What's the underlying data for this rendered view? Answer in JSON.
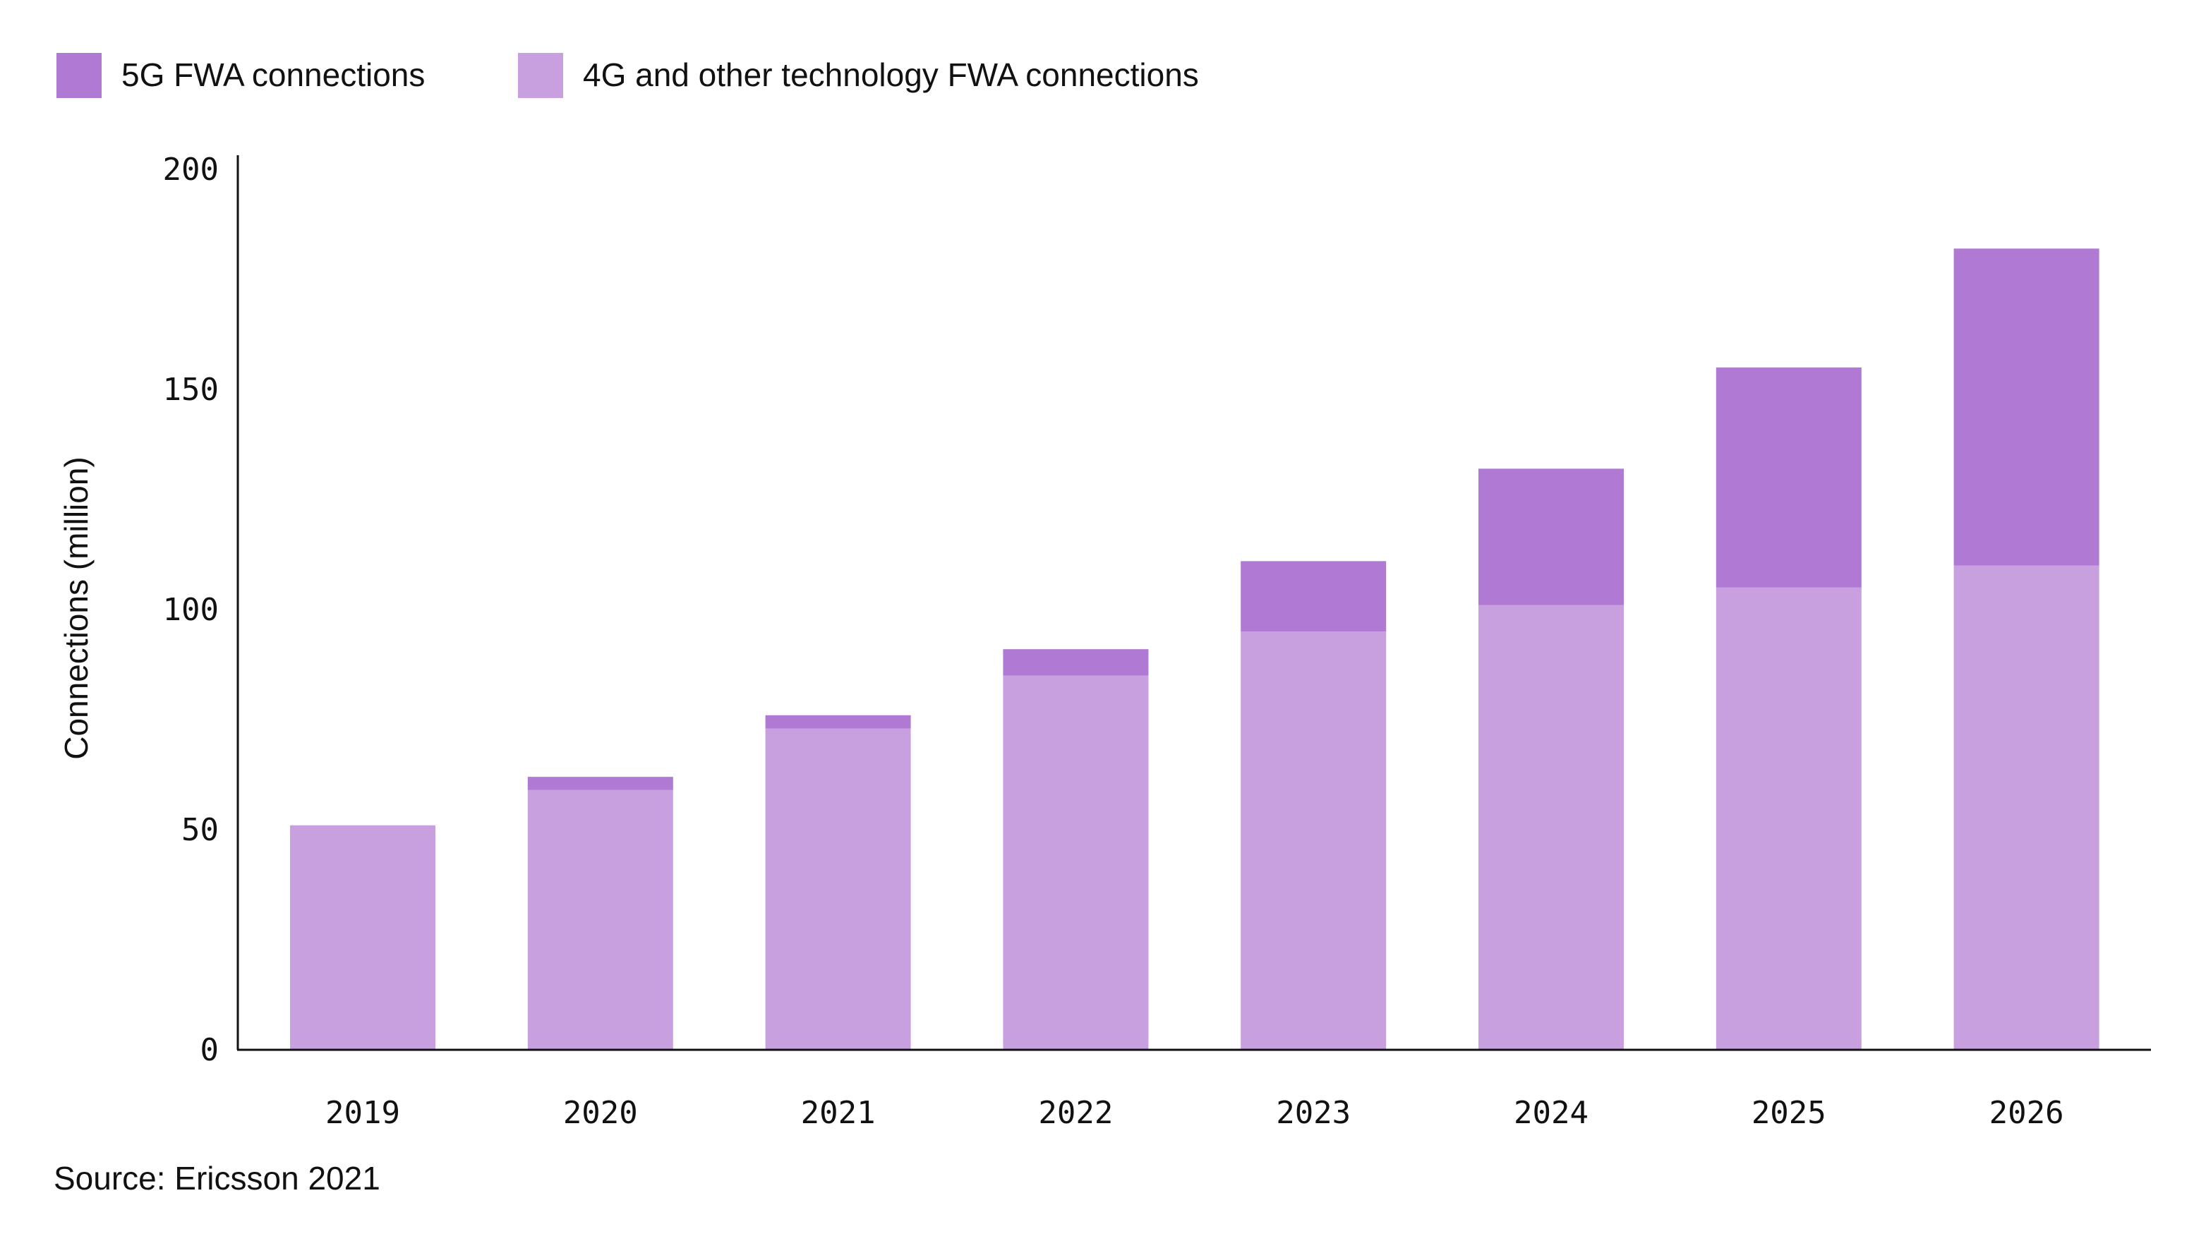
{
  "chart_data": {
    "type": "bar",
    "stacked": true,
    "categories": [
      "2019",
      "2020",
      "2021",
      "2022",
      "2023",
      "2024",
      "2025",
      "2026"
    ],
    "series": [
      {
        "name": "4G and other technology FWA connections",
        "color": "#C8A0DF",
        "values": [
          51,
          59,
          73,
          85,
          95,
          101,
          105,
          110
        ]
      },
      {
        "name": "5G FWA connections",
        "color": "#B07AD4",
        "values": [
          0,
          3,
          3,
          6,
          16,
          31,
          50,
          72
        ]
      }
    ],
    "legend_order": [
      "5G FWA connections",
      "4G and other technology FWA connections"
    ],
    "legend_placement": "top-left",
    "xlabel": "",
    "ylabel": "Connections (million)",
    "ylim": [
      0,
      200
    ],
    "yticks": [
      "0",
      "50",
      "100",
      "150",
      "200"
    ],
    "grid": false
  },
  "source": "Source: Ericsson 2021"
}
